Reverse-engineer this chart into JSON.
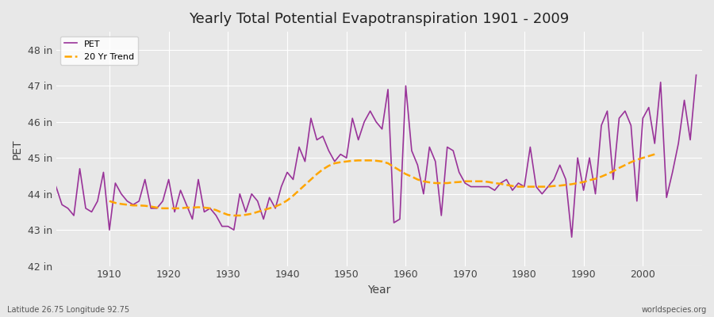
{
  "title": "Yearly Total Potential Evapotranspiration 1901 - 2009",
  "xlabel": "Year",
  "ylabel": "PET",
  "subtitle_left": "Latitude 26.75 Longitude 92.75",
  "subtitle_right": "worldspecies.org",
  "pet_color": "#993399",
  "trend_color": "#FFA500",
  "background_color": "#e8e8e8",
  "plot_bg_color": "#e8e8e8",
  "ylim": [
    42,
    48.5
  ],
  "yticks": [
    42,
    43,
    44,
    45,
    46,
    47,
    48
  ],
  "ytick_labels": [
    "42 in",
    "43 in",
    "44 in",
    "45 in",
    "46 in",
    "47 in",
    "48 in"
  ],
  "xlim": [
    1901,
    2010
  ],
  "years": [
    1901,
    1902,
    1903,
    1904,
    1905,
    1906,
    1907,
    1908,
    1909,
    1910,
    1911,
    1912,
    1913,
    1914,
    1915,
    1916,
    1917,
    1918,
    1919,
    1920,
    1921,
    1922,
    1923,
    1924,
    1925,
    1926,
    1927,
    1928,
    1929,
    1930,
    1931,
    1932,
    1933,
    1934,
    1935,
    1936,
    1937,
    1938,
    1939,
    1940,
    1941,
    1942,
    1943,
    1944,
    1945,
    1946,
    1947,
    1948,
    1949,
    1950,
    1951,
    1952,
    1953,
    1954,
    1955,
    1956,
    1957,
    1958,
    1959,
    1960,
    1961,
    1962,
    1963,
    1964,
    1965,
    1966,
    1967,
    1968,
    1969,
    1970,
    1971,
    1972,
    1973,
    1974,
    1975,
    1976,
    1977,
    1978,
    1979,
    1980,
    1981,
    1982,
    1983,
    1984,
    1985,
    1986,
    1987,
    1988,
    1989,
    1990,
    1991,
    1992,
    1993,
    1994,
    1995,
    1996,
    1997,
    1998,
    1999,
    2000,
    2001,
    2002,
    2003,
    2004,
    2005,
    2006,
    2007,
    2008,
    2009
  ],
  "pet_values": [
    44.2,
    43.7,
    43.6,
    43.4,
    44.7,
    43.6,
    43.5,
    43.8,
    44.6,
    43.0,
    44.3,
    44.0,
    43.8,
    43.7,
    43.8,
    44.4,
    43.6,
    43.6,
    43.8,
    44.4,
    43.5,
    44.1,
    43.7,
    43.3,
    44.4,
    43.5,
    43.6,
    43.4,
    43.1,
    43.1,
    43.0,
    44.0,
    43.5,
    44.0,
    43.8,
    43.3,
    43.9,
    43.6,
    44.2,
    44.6,
    44.4,
    45.3,
    44.9,
    46.1,
    45.5,
    45.6,
    45.2,
    44.9,
    45.1,
    45.0,
    46.1,
    45.5,
    46.0,
    46.3,
    46.0,
    45.8,
    46.9,
    43.2,
    43.3,
    47.0,
    45.2,
    44.8,
    44.0,
    45.3,
    44.9,
    43.4,
    45.3,
    45.2,
    44.6,
    44.3,
    44.2,
    44.2,
    44.2,
    44.2,
    44.1,
    44.3,
    44.4,
    44.1,
    44.3,
    44.2,
    45.3,
    44.2,
    44.0,
    44.2,
    44.4,
    44.8,
    44.4,
    42.8,
    45.0,
    44.1,
    45.0,
    44.0,
    45.9,
    46.3,
    44.4,
    46.1,
    46.3,
    45.9,
    43.8,
    46.1,
    46.4,
    45.4,
    47.1,
    43.9,
    44.6,
    45.4,
    46.6,
    45.5,
    47.3
  ],
  "trend_values": [
    null,
    null,
    null,
    null,
    null,
    null,
    null,
    null,
    null,
    43.8,
    43.75,
    43.72,
    43.7,
    43.68,
    43.68,
    43.67,
    43.65,
    43.62,
    43.6,
    43.6,
    43.6,
    43.6,
    43.62,
    43.62,
    43.63,
    43.62,
    43.6,
    43.55,
    43.48,
    43.42,
    43.4,
    43.4,
    43.42,
    43.45,
    43.5,
    43.55,
    43.6,
    43.65,
    43.72,
    43.82,
    43.95,
    44.1,
    44.25,
    44.4,
    44.55,
    44.68,
    44.78,
    44.85,
    44.88,
    44.9,
    44.92,
    44.93,
    44.93,
    44.93,
    44.92,
    44.9,
    44.85,
    44.75,
    44.65,
    44.55,
    44.48,
    44.4,
    44.35,
    44.32,
    44.3,
    44.3,
    44.3,
    44.32,
    44.33,
    44.35,
    44.35,
    44.35,
    44.35,
    44.33,
    44.3,
    44.28,
    44.25,
    44.22,
    44.2,
    44.2,
    44.2,
    44.2,
    44.2,
    44.2,
    44.22,
    44.23,
    44.25,
    44.27,
    44.3,
    44.33,
    44.38,
    44.42,
    44.48,
    44.55,
    44.63,
    44.72,
    44.8,
    44.88,
    44.95,
    45.0,
    45.05,
    45.1,
    null,
    null,
    null,
    null,
    null,
    null
  ]
}
